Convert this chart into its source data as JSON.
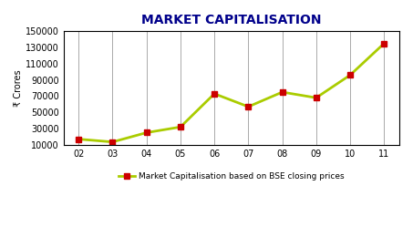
{
  "title": "MARKET CAPITALISATION",
  "xlabel": "",
  "ylabel": "₹ Crores",
  "years": [
    "02",
    "03",
    "04",
    "05",
    "06",
    "07",
    "08",
    "09",
    "10",
    "11"
  ],
  "values": [
    17000,
    13500,
    25000,
    32000,
    73000,
    57000,
    75000,
    68000,
    96000,
    135000
  ],
  "ylim": [
    10000,
    150000
  ],
  "yticks": [
    10000,
    30000,
    50000,
    70000,
    90000,
    110000,
    130000,
    150000
  ],
  "line_color": "#aacc00",
  "marker_color": "#cc0000",
  "title_color": "#00008B",
  "legend_label": "Market Capitalisation based on BSE closing prices",
  "background_color": "#ffffff",
  "plot_bg_color": "#ffffff",
  "border_color": "#000000",
  "grid_color": "#aaaaaa",
  "axis_label_color": "#000000"
}
